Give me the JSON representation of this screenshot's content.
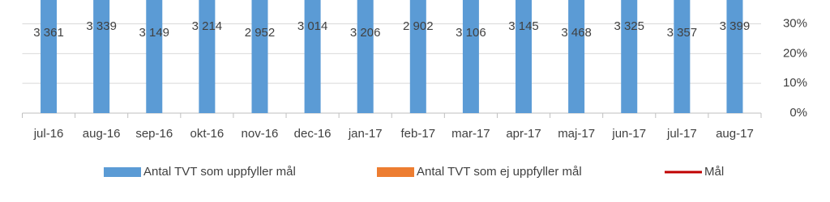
{
  "chart_data": {
    "type": "bar",
    "categories": [
      "jul-16",
      "aug-16",
      "sep-16",
      "okt-16",
      "nov-16",
      "dec-16",
      "jan-17",
      "feb-17",
      "mar-17",
      "apr-17",
      "maj-17",
      "jun-17",
      "jul-17",
      "aug-17"
    ],
    "series": [
      {
        "name": "Antal TVT som uppfyller mål",
        "color": "#5b9bd5",
        "values": [
          3361,
          3339,
          3149,
          3214,
          2952,
          3014,
          3206,
          2902,
          3106,
          3145,
          3468,
          3325,
          3357,
          3399
        ],
        "value_labels": [
          "3 361",
          "3 339",
          "3 149",
          "3 214",
          "2 952",
          "3 014",
          "3 206",
          "2 902",
          "3 106",
          "3 145",
          "3 468",
          "3 325",
          "3 357",
          "3 399"
        ]
      },
      {
        "name": "Antal TVT som ej uppfyller mål",
        "color": "#ed7d31",
        "values": [
          null,
          null,
          null,
          null,
          null,
          null,
          null,
          null,
          null,
          null,
          null,
          null,
          null,
          null
        ]
      },
      {
        "name": "Mål",
        "color": "#c00000",
        "axis": "y2",
        "type": "line",
        "values": [
          null,
          null,
          null,
          null,
          null,
          null,
          null,
          null,
          null,
          null,
          null,
          null,
          null,
          null
        ]
      }
    ],
    "ylim": [
      0,
      2300
    ],
    "y2lim": [
      0,
      38
    ],
    "y2ticks": [
      {
        "value": 0,
        "label": "0%"
      },
      {
        "value": 10,
        "label": "10%"
      },
      {
        "value": 20,
        "label": "20%"
      },
      {
        "value": 30,
        "label": "30%"
      }
    ],
    "grid": true,
    "legend": "bottom"
  }
}
